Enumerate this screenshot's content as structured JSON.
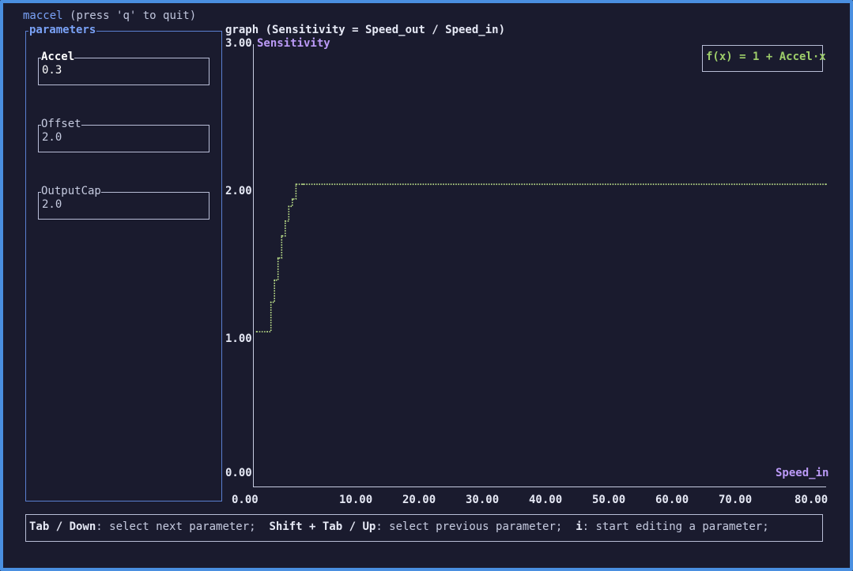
{
  "app": {
    "name": "maccel",
    "hint": "(press 'q' to quit)"
  },
  "parameters": {
    "title": "parameters",
    "fields": [
      {
        "label": "Accel",
        "value": "0.3",
        "active": true
      },
      {
        "label": "Offset",
        "value": "2.0",
        "active": false
      },
      {
        "label": "OutputCap",
        "value": "2.0",
        "active": false
      }
    ]
  },
  "graph": {
    "title": "graph (Sensitivity = Speed_out / Speed_in)",
    "legend": "f(x) = 1 + Accel·x",
    "line_color": "#c3e88d"
  },
  "chart_data": {
    "type": "line",
    "title": "graph (Sensitivity = Speed_out / Speed_in)",
    "xlabel": "Speed_in",
    "ylabel": "Sensitivity",
    "xlim": [
      0,
      80
    ],
    "ylim": [
      0,
      3
    ],
    "x_ticks": [
      "0.00",
      "10.00",
      "20.00",
      "30.00",
      "40.00",
      "50.00",
      "60.00",
      "70.00",
      "80.00"
    ],
    "y_ticks": [
      "0.00",
      "1.00",
      "2.00",
      "3.00"
    ],
    "legend_placement": "top-right",
    "series": [
      {
        "name": "f(x) = 1 + Accel·x",
        "x": [
          0.5,
          2.0,
          2.5,
          3.0,
          3.5,
          4.0,
          4.5,
          5.0,
          5.5,
          6.0,
          7.0,
          80
        ],
        "y": [
          1.05,
          1.05,
          1.25,
          1.4,
          1.55,
          1.7,
          1.8,
          1.9,
          1.95,
          2.05,
          2.05,
          2.05
        ]
      }
    ]
  },
  "help": {
    "k1": "Tab / Down",
    "d1": ": select next parameter;  ",
    "k2": "Shift + Tab / Up",
    "d2": ": select previous parameter;  ",
    "k3": "i",
    "d3": ": start editing a parameter;"
  }
}
